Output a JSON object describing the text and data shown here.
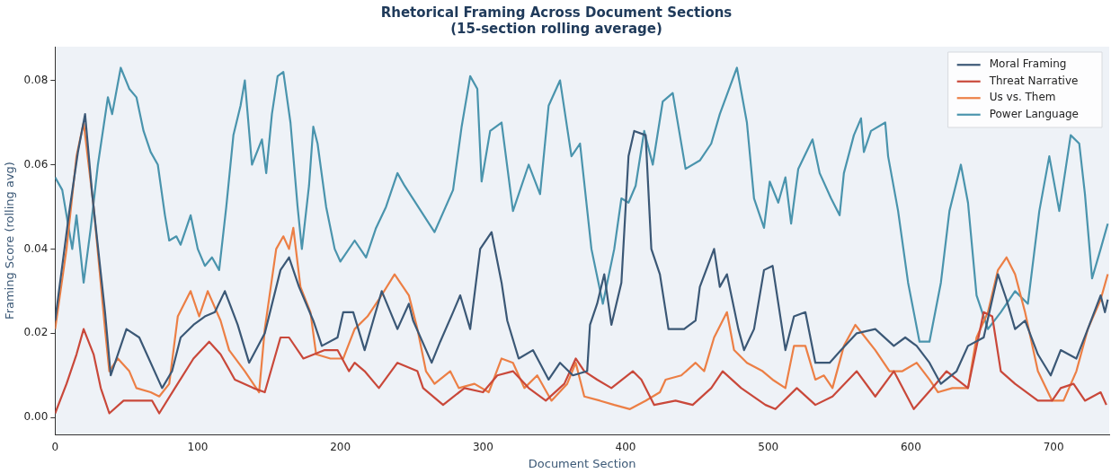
{
  "chart_data": {
    "type": "line",
    "title": "Rhetorical Framing Across Document Sections",
    "subtitle": "(15-section rolling average)",
    "xlabel": "Document Section",
    "ylabel": "Framing Score (rolling avg)",
    "xlim": [
      0,
      739
    ],
    "xticks": [
      0,
      100,
      200,
      300,
      400,
      500,
      600,
      700
    ],
    "ylim": [
      -0.004,
      0.088
    ],
    "yticks": [
      {
        "value": 0,
        "label": "0.00"
      },
      {
        "value": 0.02,
        "label": "0.02"
      },
      {
        "value": 0.04,
        "label": "0.04"
      },
      {
        "value": 0.06,
        "label": "0.06"
      },
      {
        "value": 0.08,
        "label": "0.08"
      }
    ],
    "grid": false,
    "legend": "top right",
    "marker": "none",
    "line_style": "solid",
    "series": [
      {
        "name": "Moral Framing",
        "color": "#3b5876",
        "x": [
          0,
          10,
          16,
          21,
          26,
          35,
          39,
          50,
          59,
          75,
          82,
          88,
          97,
          105,
          112,
          119,
          128,
          136,
          147,
          158,
          164,
          171,
          181,
          187,
          198,
          202,
          209,
          217,
          223,
          229,
          240,
          248,
          251,
          264,
          270,
          279,
          284,
          291,
          298,
          306,
          313,
          317,
          325,
          335,
          346,
          354,
          363,
          373,
          375,
          380,
          385,
          390,
          397,
          402,
          406,
          414,
          418,
          424,
          430,
          441,
          449,
          452,
          462,
          466,
          471,
          479,
          483,
          490,
          497,
          503,
          512,
          518,
          526,
          533,
          543,
          551,
          562,
          575,
          588,
          596,
          604,
          613,
          621,
          632,
          640,
          651,
          661,
          667,
          673,
          680,
          689,
          698,
          705,
          716,
          724,
          733,
          736,
          738
        ],
        "values": [
          0.023,
          0.049,
          0.063,
          0.072,
          0.053,
          0.025,
          0.01,
          0.021,
          0.019,
          0.007,
          0.011,
          0.019,
          0.022,
          0.024,
          0.025,
          0.03,
          0.022,
          0.013,
          0.02,
          0.035,
          0.038,
          0.031,
          0.023,
          0.017,
          0.019,
          0.025,
          0.025,
          0.016,
          0.023,
          0.03,
          0.021,
          0.027,
          0.023,
          0.013,
          0.018,
          0.025,
          0.029,
          0.021,
          0.04,
          0.044,
          0.032,
          0.023,
          0.014,
          0.016,
          0.009,
          0.013,
          0.01,
          0.011,
          0.022,
          0.027,
          0.034,
          0.022,
          0.032,
          0.062,
          0.068,
          0.067,
          0.04,
          0.034,
          0.021,
          0.021,
          0.023,
          0.031,
          0.04,
          0.031,
          0.034,
          0.021,
          0.016,
          0.021,
          0.035,
          0.036,
          0.016,
          0.024,
          0.025,
          0.013,
          0.013,
          0.016,
          0.02,
          0.021,
          0.017,
          0.019,
          0.017,
          0.013,
          0.008,
          0.011,
          0.017,
          0.019,
          0.034,
          0.028,
          0.021,
          0.023,
          0.015,
          0.01,
          0.016,
          0.014,
          0.021,
          0.029,
          0.025,
          0.028
        ]
      },
      {
        "name": "Threat Narrative",
        "color": "#c9483a",
        "x": [
          0,
          8,
          15,
          20,
          27,
          32,
          38,
          48,
          59,
          68,
          73,
          84,
          97,
          108,
          116,
          126,
          139,
          147,
          158,
          164,
          174,
          189,
          198,
          206,
          210,
          217,
          227,
          240,
          254,
          258,
          272,
          287,
          300,
          310,
          321,
          332,
          344,
          357,
          365,
          371,
          380,
          390,
          405,
          411,
          420,
          435,
          447,
          460,
          468,
          481,
          498,
          505,
          520,
          533,
          545,
          562,
          575,
          588,
          602,
          615,
          625,
          640,
          651,
          657,
          663,
          673,
          689,
          699,
          705,
          714,
          722,
          733,
          737
        ],
        "values": [
          0.001,
          0.008,
          0.015,
          0.021,
          0.015,
          0.007,
          0.001,
          0.004,
          0.004,
          0.004,
          0.001,
          0.007,
          0.014,
          0.018,
          0.015,
          0.009,
          0.007,
          0.006,
          0.019,
          0.019,
          0.014,
          0.016,
          0.016,
          0.011,
          0.013,
          0.011,
          0.007,
          0.013,
          0.011,
          0.007,
          0.003,
          0.007,
          0.006,
          0.01,
          0.011,
          0.007,
          0.004,
          0.008,
          0.014,
          0.011,
          0.009,
          0.007,
          0.011,
          0.009,
          0.003,
          0.004,
          0.003,
          0.007,
          0.011,
          0.007,
          0.003,
          0.002,
          0.007,
          0.003,
          0.005,
          0.011,
          0.005,
          0.011,
          0.002,
          0.007,
          0.011,
          0.007,
          0.025,
          0.024,
          0.011,
          0.008,
          0.004,
          0.004,
          0.007,
          0.008,
          0.004,
          0.006,
          0.003
        ]
      },
      {
        "name": "Us vs. Them",
        "color": "#ec7f45",
        "x": [
          0,
          8,
          15,
          20,
          27,
          35,
          38,
          44,
          52,
          57,
          67,
          73,
          80,
          86,
          95,
          101,
          107,
          116,
          122,
          133,
          143,
          147,
          155,
          160,
          164,
          167,
          172,
          179,
          183,
          193,
          202,
          210,
          219,
          227,
          238,
          248,
          254,
          260,
          266,
          277,
          283,
          294,
          304,
          313,
          321,
          329,
          338,
          348,
          359,
          365,
          371,
          382,
          392,
          403,
          414,
          424,
          428,
          439,
          449,
          455,
          462,
          471,
          476,
          485,
          496,
          503,
          512,
          518,
          526,
          533,
          539,
          545,
          553,
          561,
          568,
          575,
          585,
          594,
          604,
          613,
          619,
          629,
          640,
          646,
          654,
          661,
          667,
          673,
          680,
          689,
          699,
          707,
          716,
          724,
          733,
          738
        ],
        "values": [
          0.021,
          0.04,
          0.062,
          0.07,
          0.05,
          0.021,
          0.011,
          0.014,
          0.011,
          0.007,
          0.006,
          0.005,
          0.008,
          0.024,
          0.03,
          0.024,
          0.03,
          0.023,
          0.016,
          0.011,
          0.006,
          0.021,
          0.04,
          0.043,
          0.04,
          0.045,
          0.031,
          0.025,
          0.015,
          0.014,
          0.014,
          0.021,
          0.024,
          0.028,
          0.034,
          0.029,
          0.021,
          0.011,
          0.008,
          0.011,
          0.007,
          0.008,
          0.006,
          0.014,
          0.013,
          0.007,
          0.01,
          0.004,
          0.008,
          0.013,
          0.005,
          0.004,
          0.003,
          0.002,
          0.004,
          0.006,
          0.009,
          0.01,
          0.013,
          0.011,
          0.019,
          0.025,
          0.016,
          0.013,
          0.011,
          0.009,
          0.007,
          0.017,
          0.017,
          0.009,
          0.01,
          0.007,
          0.017,
          0.022,
          0.019,
          0.016,
          0.011,
          0.011,
          0.013,
          0.009,
          0.006,
          0.007,
          0.007,
          0.019,
          0.025,
          0.035,
          0.038,
          0.034,
          0.025,
          0.011,
          0.004,
          0.004,
          0.011,
          0.021,
          0.028,
          0.034
        ]
      },
      {
        "name": "Power Language",
        "color": "#4a94ad",
        "x": [
          0,
          5,
          12,
          15,
          20,
          25,
          30,
          37,
          40,
          46,
          52,
          57,
          62,
          67,
          72,
          77,
          80,
          85,
          88,
          95,
          100,
          105,
          110,
          115,
          120,
          125,
          130,
          133,
          138,
          145,
          148,
          152,
          156,
          160,
          165,
          170,
          173,
          178,
          181,
          184,
          190,
          196,
          200,
          210,
          218,
          225,
          232,
          240,
          245,
          266,
          279,
          285,
          291,
          296,
          299,
          305,
          313,
          321,
          332,
          340,
          346,
          354,
          362,
          368,
          376,
          384,
          392,
          397,
          402,
          407,
          413,
          419,
          426,
          433,
          442,
          452,
          460,
          466,
          478,
          485,
          490,
          497,
          501,
          507,
          512,
          516,
          521,
          531,
          536,
          544,
          550,
          553,
          560,
          565,
          567,
          572,
          582,
          584,
          591,
          598,
          606,
          613,
          621,
          627,
          635,
          640,
          646,
          654,
          663,
          673,
          682,
          690,
          697,
          704,
          712,
          718,
          722,
          727,
          733,
          738
        ],
        "values": [
          0.057,
          0.054,
          0.04,
          0.048,
          0.032,
          0.045,
          0.06,
          0.076,
          0.072,
          0.083,
          0.078,
          0.076,
          0.068,
          0.063,
          0.06,
          0.048,
          0.042,
          0.043,
          0.041,
          0.048,
          0.04,
          0.036,
          0.038,
          0.035,
          0.05,
          0.067,
          0.074,
          0.08,
          0.06,
          0.066,
          0.058,
          0.072,
          0.081,
          0.082,
          0.07,
          0.05,
          0.04,
          0.055,
          0.069,
          0.065,
          0.05,
          0.04,
          0.037,
          0.042,
          0.038,
          0.045,
          0.05,
          0.058,
          0.055,
          0.044,
          0.054,
          0.069,
          0.081,
          0.078,
          0.056,
          0.068,
          0.07,
          0.049,
          0.06,
          0.053,
          0.074,
          0.08,
          0.062,
          0.065,
          0.04,
          0.027,
          0.04,
          0.052,
          0.051,
          0.055,
          0.068,
          0.06,
          0.075,
          0.077,
          0.059,
          0.061,
          0.065,
          0.072,
          0.083,
          0.07,
          0.052,
          0.045,
          0.056,
          0.051,
          0.057,
          0.046,
          0.059,
          0.066,
          0.058,
          0.052,
          0.048,
          0.058,
          0.067,
          0.071,
          0.063,
          0.068,
          0.07,
          0.062,
          0.049,
          0.032,
          0.018,
          0.018,
          0.032,
          0.049,
          0.06,
          0.051,
          0.029,
          0.021,
          0.025,
          0.03,
          0.027,
          0.049,
          0.062,
          0.049,
          0.067,
          0.065,
          0.053,
          0.033,
          0.04,
          0.046
        ]
      }
    ]
  }
}
